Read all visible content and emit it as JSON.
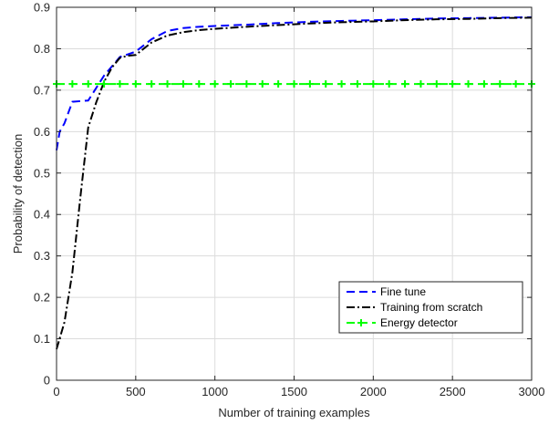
{
  "chart_data": {
    "type": "line",
    "title": "",
    "xlabel": "Number of training examples",
    "ylabel": "Probability of detection",
    "xlim": [
      0,
      3000
    ],
    "ylim": [
      0,
      0.9
    ],
    "xticks": [
      0,
      500,
      1000,
      1500,
      2000,
      2500,
      3000
    ],
    "yticks": [
      0,
      0.1,
      0.2,
      0.3,
      0.4,
      0.5,
      0.6,
      0.7,
      0.8,
      0.9
    ],
    "xtick_labels": [
      "0",
      "500",
      "1000",
      "1500",
      "2000",
      "2500",
      "3000"
    ],
    "ytick_labels": [
      "0",
      "0.1",
      "0.2",
      "0.3",
      "0.4",
      "0.5",
      "0.6",
      "0.7",
      "0.8",
      "0.9"
    ],
    "grid": true,
    "legend_position": "bottom-right",
    "series": [
      {
        "name": "Fine tune",
        "color": "#0000ff",
        "style": "dashed",
        "marker": "none",
        "x": [
          0,
          20,
          50,
          100,
          200,
          300,
          400,
          500,
          600,
          700,
          800,
          900,
          1000,
          1200,
          1400,
          1600,
          1800,
          2000,
          2200,
          2400,
          2600,
          2800,
          3000
        ],
        "y": [
          0.555,
          0.6,
          0.62,
          0.672,
          0.675,
          0.735,
          0.78,
          0.793,
          0.823,
          0.843,
          0.85,
          0.853,
          0.855,
          0.858,
          0.862,
          0.865,
          0.867,
          0.869,
          0.871,
          0.873,
          0.874,
          0.875,
          0.876
        ]
      },
      {
        "name": "Training from scratch",
        "color": "#000000",
        "style": "dashdot",
        "marker": "none",
        "x": [
          0,
          50,
          100,
          150,
          200,
          250,
          300,
          350,
          400,
          450,
          500,
          600,
          700,
          800,
          900,
          1000,
          1200,
          1400,
          1600,
          1800,
          2000,
          2200,
          2400,
          2600,
          2800,
          3000
        ],
        "y": [
          0.075,
          0.14,
          0.26,
          0.44,
          0.61,
          0.67,
          0.72,
          0.755,
          0.778,
          0.783,
          0.785,
          0.815,
          0.832,
          0.84,
          0.845,
          0.848,
          0.853,
          0.857,
          0.861,
          0.864,
          0.866,
          0.869,
          0.871,
          0.872,
          0.874,
          0.875
        ]
      },
      {
        "name": "Energy detector",
        "color": "#00ff00",
        "style": "dashed",
        "marker": "plus",
        "x": [
          0,
          100,
          200,
          300,
          400,
          500,
          600,
          700,
          800,
          900,
          1000,
          1100,
          1200,
          1300,
          1400,
          1500,
          1600,
          1700,
          1800,
          1900,
          2000,
          2100,
          2200,
          2300,
          2400,
          2500,
          2600,
          2700,
          2800,
          2900,
          3000
        ],
        "y": [
          0.715,
          0.715,
          0.715,
          0.715,
          0.715,
          0.715,
          0.715,
          0.715,
          0.715,
          0.715,
          0.715,
          0.715,
          0.715,
          0.715,
          0.715,
          0.715,
          0.715,
          0.715,
          0.715,
          0.715,
          0.715,
          0.715,
          0.715,
          0.715,
          0.715,
          0.715,
          0.715,
          0.715,
          0.715,
          0.715,
          0.715
        ]
      }
    ]
  }
}
